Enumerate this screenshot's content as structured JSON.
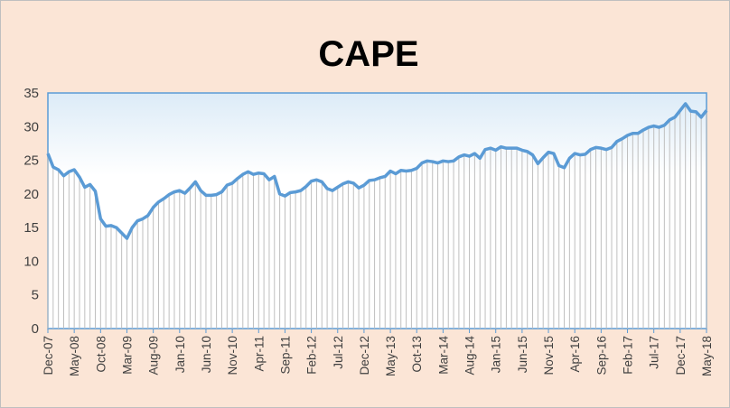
{
  "chart_data": {
    "type": "area",
    "title": "CAPE",
    "xlabel": "",
    "ylabel": "",
    "ylim": [
      0,
      35
    ],
    "yticks": [
      0,
      5,
      10,
      15,
      20,
      25,
      30,
      35
    ],
    "grid": false,
    "legend": "none",
    "x_start": "Dec-07",
    "x_end": "May-18",
    "frequency": "monthly",
    "x_tick_labels": [
      "Dec-07",
      "May-08",
      "Oct-08",
      "Mar-09",
      "Aug-09",
      "Jan-10",
      "Jun-10",
      "Nov-10",
      "Apr-11",
      "Sep-11",
      "Feb-12",
      "Jul-12",
      "Dec-12",
      "May-13",
      "Oct-13",
      "Mar-14",
      "Aug-14",
      "Jan-15",
      "Jun-15",
      "Nov-15",
      "Apr-16",
      "Sep-16",
      "Feb-17",
      "Jul-17",
      "Dec-17",
      "May-18"
    ],
    "series": [
      {
        "name": "",
        "color": "#5b9bd5",
        "fill": "#bfbfbf",
        "values": [
          26.0,
          24.0,
          23.6,
          22.7,
          23.3,
          23.6,
          22.5,
          21.0,
          21.4,
          20.4,
          16.3,
          15.2,
          15.3,
          15.0,
          14.2,
          13.4,
          15.0,
          16.0,
          16.3,
          16.8,
          18.0,
          18.8,
          19.3,
          19.9,
          20.3,
          20.5,
          20.1,
          20.9,
          21.8,
          20.5,
          19.8,
          19.8,
          19.9,
          20.3,
          21.3,
          21.6,
          22.3,
          22.9,
          23.3,
          22.9,
          23.1,
          23.0,
          22.1,
          22.6,
          20.0,
          19.7,
          20.2,
          20.3,
          20.5,
          21.1,
          21.9,
          22.1,
          21.8,
          20.8,
          20.5,
          21.0,
          21.5,
          21.8,
          21.6,
          20.9,
          21.3,
          22.0,
          22.1,
          22.4,
          22.6,
          23.4,
          23.0,
          23.5,
          23.4,
          23.5,
          23.8,
          24.6,
          24.9,
          24.8,
          24.6,
          24.9,
          24.8,
          24.9,
          25.5,
          25.8,
          25.6,
          26.0,
          25.3,
          26.6,
          26.8,
          26.5,
          27.0,
          26.8,
          26.8,
          26.8,
          26.5,
          26.3,
          25.8,
          24.5,
          25.4,
          26.2,
          26.0,
          24.2,
          23.9,
          25.3,
          26.0,
          25.8,
          25.9,
          26.6,
          26.9,
          26.8,
          26.6,
          26.9,
          27.8,
          28.2,
          28.7,
          29.0,
          29.0,
          29.5,
          29.9,
          30.1,
          29.9,
          30.2,
          31.0,
          31.4,
          32.4,
          33.4,
          32.3,
          32.2,
          31.4,
          32.4
        ]
      }
    ]
  }
}
